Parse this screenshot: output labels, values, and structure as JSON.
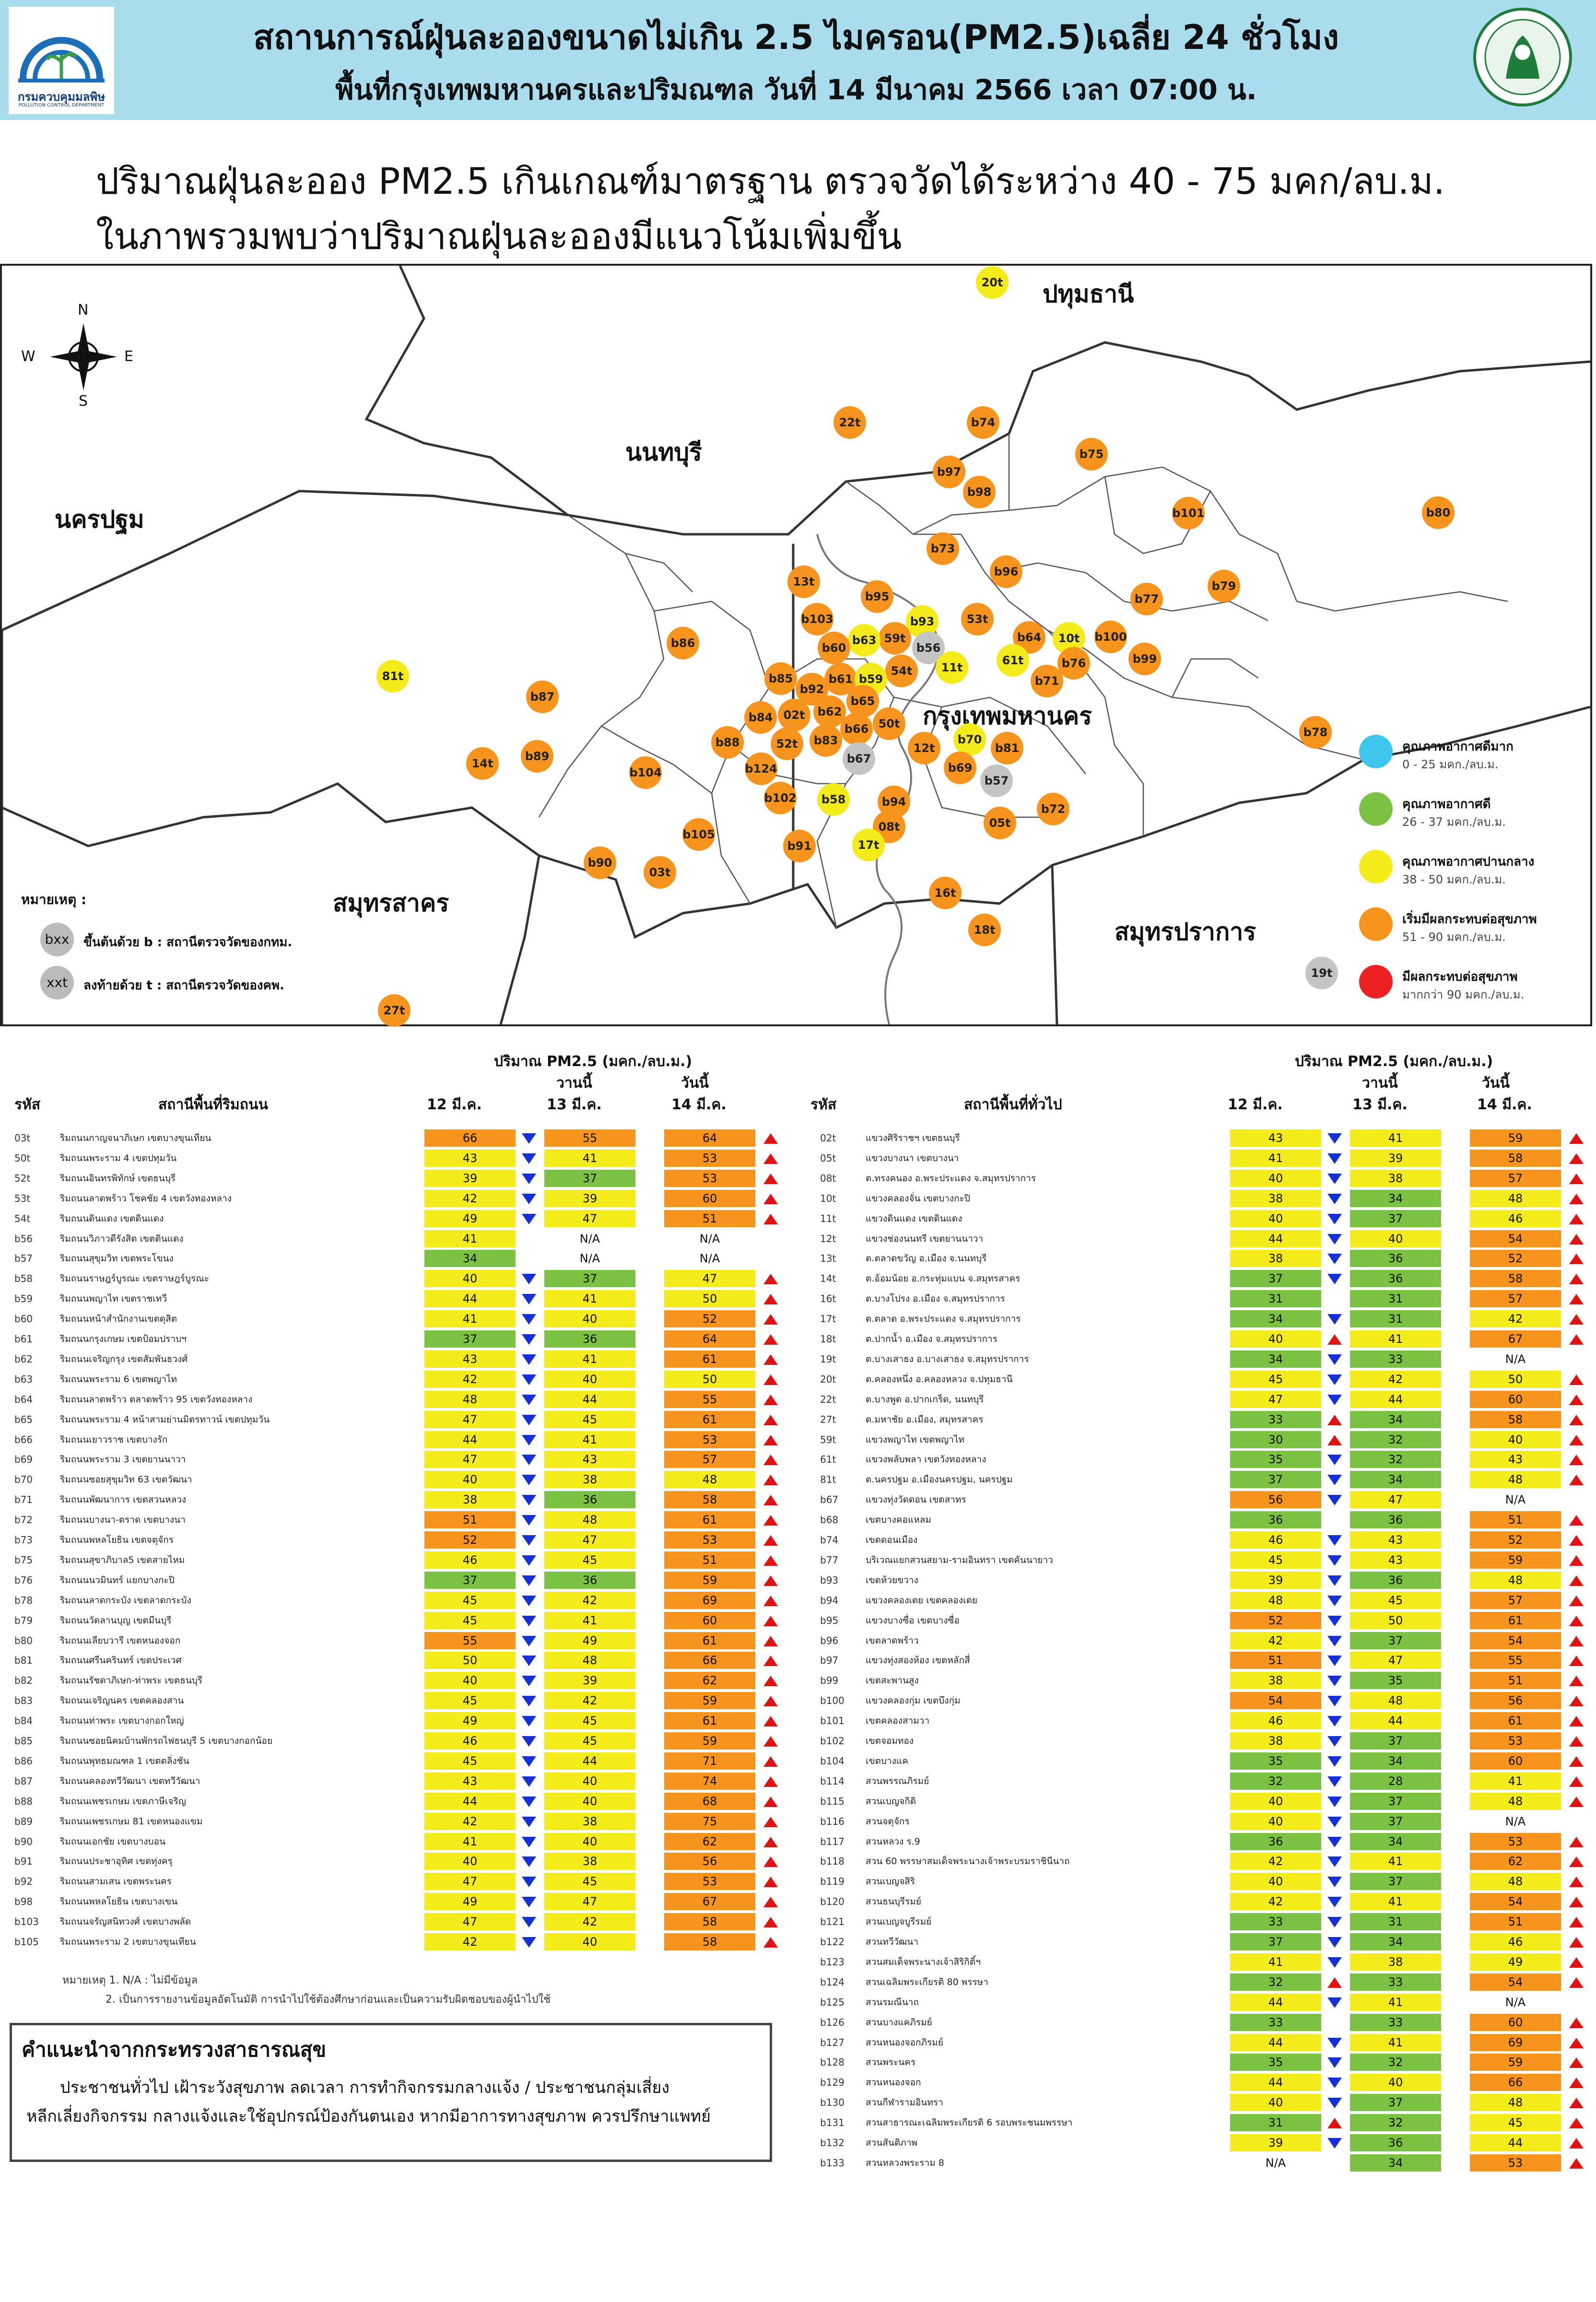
{
  "header": {
    "title_line1": "สถานการณ์ฝุ่นละอองขนาดไม่เกิน 2.5 ไมครอน(PM2.5)เฉลี่ย 24 ชั่วโมง",
    "title_line2": "พื้นที่กรุงเทพมหานครและปริมณฑล วันที่ 14 มีนาคม 2566 เวลา 07:00 น.",
    "pcd_name_th": "กรมควบคุมมลพิษ",
    "pcd_name_en": "POLLUTION CONTROL DEPARTMENT"
  },
  "headline": {
    "line1": "ปริมาณฝุ่นละออง PM2.5 เกินเกณฑ์มาตรฐาน ตรวจวัดได้ระหว่าง 40 - 75 มคก/ลบ.ม.",
    "line2": "ในภาพรวมพบว่าปริมาณฝุ่นละอองมีแนวโน้มเพิ่มขึ้น"
  },
  "map": {
    "compass": {
      "n": "N",
      "s": "S",
      "e": "E",
      "w": "W"
    },
    "provinces": [
      {
        "id": "pathum",
        "label": "ปทุมธานี"
      },
      {
        "id": "nonthaburi",
        "label": "นนทบุรี"
      },
      {
        "id": "nakhonpathom",
        "label": "นครปฐม"
      },
      {
        "id": "bangkok",
        "label": "กรุงเทพมหานคร"
      },
      {
        "id": "samutsakhon",
        "label": "สมุทรสาคร"
      },
      {
        "id": "samutprakan",
        "label": "สมุทรปราการ"
      }
    ],
    "stations": [
      {
        "id": "20t",
        "c": "y"
      },
      {
        "id": "22t",
        "c": "o"
      },
      {
        "id": "b74",
        "c": "o"
      },
      {
        "id": "b97",
        "c": "o"
      },
      {
        "id": "b98",
        "c": "o"
      },
      {
        "id": "b75",
        "c": "o"
      },
      {
        "id": "b101",
        "c": "o"
      },
      {
        "id": "b80",
        "c": "o"
      },
      {
        "id": "b73",
        "c": "o"
      },
      {
        "id": "b96",
        "c": "o"
      },
      {
        "id": "13t",
        "c": "o"
      },
      {
        "id": "b95",
        "c": "o"
      },
      {
        "id": "b79",
        "c": "o"
      },
      {
        "id": "b77",
        "c": "o"
      },
      {
        "id": "b103",
        "c": "o"
      },
      {
        "id": "b93",
        "c": "y"
      },
      {
        "id": "53t",
        "c": "o"
      },
      {
        "id": "59t",
        "c": "o"
      },
      {
        "id": "b63",
        "c": "y"
      },
      {
        "id": "b60",
        "c": "o"
      },
      {
        "id": "b56",
        "c": "g"
      },
      {
        "id": "b64",
        "c": "o"
      },
      {
        "id": "10t",
        "c": "y"
      },
      {
        "id": "b100",
        "c": "o"
      },
      {
        "id": "b86",
        "c": "o"
      },
      {
        "id": "61t",
        "c": "y"
      },
      {
        "id": "b76",
        "c": "o"
      },
      {
        "id": "11t",
        "c": "y"
      },
      {
        "id": "b99",
        "c": "o"
      },
      {
        "id": "54t",
        "c": "o"
      },
      {
        "id": "b71",
        "c": "o"
      },
      {
        "id": "81t",
        "c": "y"
      },
      {
        "id": "b85",
        "c": "o"
      },
      {
        "id": "b61",
        "c": "o"
      },
      {
        "id": "b59",
        "c": "y"
      },
      {
        "id": "b92",
        "c": "o"
      },
      {
        "id": "b87",
        "c": "o"
      },
      {
        "id": "b65",
        "c": "o"
      },
      {
        "id": "b62",
        "c": "o"
      },
      {
        "id": "02t",
        "c": "o"
      },
      {
        "id": "b84",
        "c": "o"
      },
      {
        "id": "b66",
        "c": "o"
      },
      {
        "id": "50t",
        "c": "o"
      },
      {
        "id": "b70",
        "c": "y"
      },
      {
        "id": "b78",
        "c": "o"
      },
      {
        "id": "b88",
        "c": "o"
      },
      {
        "id": "52t",
        "c": "o"
      },
      {
        "id": "b83",
        "c": "o"
      },
      {
        "id": "12t",
        "c": "o"
      },
      {
        "id": "b81",
        "c": "o"
      },
      {
        "id": "14t",
        "c": "o"
      },
      {
        "id": "b89",
        "c": "o"
      },
      {
        "id": "b67",
        "c": "g"
      },
      {
        "id": "b124",
        "c": "o"
      },
      {
        "id": "b69",
        "c": "o"
      },
      {
        "id": "b104",
        "c": "o"
      },
      {
        "id": "b57",
        "c": "g"
      },
      {
        "id": "b58",
        "c": "y"
      },
      {
        "id": "b102",
        "c": "o"
      },
      {
        "id": "b94",
        "c": "o"
      },
      {
        "id": "b72",
        "c": "o"
      },
      {
        "id": "08t",
        "c": "o"
      },
      {
        "id": "05t",
        "c": "o"
      },
      {
        "id": "b105",
        "c": "o"
      },
      {
        "id": "b91",
        "c": "o"
      },
      {
        "id": "17t",
        "c": "y"
      },
      {
        "id": "b90",
        "c": "o"
      },
      {
        "id": "03t",
        "c": "o"
      },
      {
        "id": "16t",
        "c": "o"
      },
      {
        "id": "18t",
        "c": "o"
      },
      {
        "id": "19t",
        "c": "g"
      },
      {
        "id": "27t",
        "c": "o"
      }
    ],
    "note": {
      "title": "หมายเหตุ :",
      "b_sym": "bxx",
      "b_text": "ขึ้นต้นด้วย b : สถานีตรวจวัดของกทม.",
      "t_sym": "xxt",
      "t_text": "ลงท้ายด้วย t : สถานีตรวจวัดของคพ."
    },
    "legend": [
      {
        "color": "#3ec6ee",
        "title": "คุณภาพอากาศดีมาก",
        "range": "0 - 25 มคก./ลบ.ม."
      },
      {
        "color": "#7cc242",
        "title": "คุณภาพอากาศดี",
        "range": "26 - 37 มคก./ลบ.ม."
      },
      {
        "color": "#f4ec1a",
        "title": "คุณภาพอากาศปานกลาง",
        "range": "38 - 50 มคก./ลบ.ม."
      },
      {
        "color": "#f7941d",
        "title": "เริ่มมีผลกระทบต่อสุขภาพ",
        "range": "51 - 90 มคก./ลบ.ม."
      },
      {
        "color": "#ed2024",
        "title": "มีผลกระทบต่อสุขภาพ",
        "range": "มากกว่า 90 มคก./ลบ.ม."
      }
    ]
  },
  "colors": {
    "g": "#7cc242",
    "y": "#f4ec1a",
    "o": "#f7941d",
    "r": "#ed2024",
    "na": "#ffffff",
    "up": "#e11212",
    "down": "#1530d8"
  },
  "tables": {
    "h_pm": "ปริมาณ PM2.5 (มคก./ลบ.ม.)",
    "h_yesterday": "วานนี้",
    "h_today": "วันนี้",
    "h_code": "รหัส",
    "h_roadside": "สถานีพื้นที่ริมถนน",
    "h_general": "สถานีพื้นที่ทั่วไป",
    "h_d12": "12 มี.ค.",
    "h_d13": "13 มี.ค.",
    "h_d14": "14 มี.ค.",
    "notes_1": "หมายเหตุ 1. N/A : ไม่มีข้อมูล",
    "notes_2": "2. เป็นการรายงานข้อมูลอัตโนมัติ การนำไปใช้ต้องศึกษาก่อนและเป็นความรับผิดชอบของผู้นำไปใช้",
    "roadside": [
      [
        "03t",
        "ริมถนนกาญจนาภิเษก เขตบางขุนเทียน",
        "66",
        "55",
        "64",
        "d",
        "u"
      ],
      [
        "50t",
        "ริมถนนพระราม 4 เขตปทุมวัน",
        "43",
        "41",
        "53",
        "d",
        "u"
      ],
      [
        "52t",
        "ริมถนนอินทรพิทักษ์ เขตธนบุรี",
        "39",
        "37",
        "53",
        "d",
        "u"
      ],
      [
        "53t",
        "ริมถนนลาดพร้าว โชคชัย 4 เขตวังทองหลาง",
        "42",
        "39",
        "60",
        "d",
        "u"
      ],
      [
        "54t",
        "ริมถนนดินแดง เขตดินแดง",
        "49",
        "47",
        "51",
        "d",
        "u"
      ],
      [
        "b56",
        "ริมถนนวิภาวดีรังสิต เขตดินแดง",
        "41",
        "N/A",
        "N/A",
        "",
        ""
      ],
      [
        "b57",
        "ริมถนนสุขุมวิท เขตพระโขนง",
        "34",
        "N/A",
        "N/A",
        "",
        ""
      ],
      [
        "b58",
        "ริมถนนราษฎร์บูรณะ เขตราษฎร์บูรณะ",
        "40",
        "37",
        "47",
        "d",
        "u"
      ],
      [
        "b59",
        "ริมถนนพญาไท เขตราชเทวี",
        "44",
        "41",
        "50",
        "d",
        "u"
      ],
      [
        "b60",
        "ริมถนนหน้าสำนักงานเขตดุสิต",
        "41",
        "40",
        "52",
        "d",
        "u"
      ],
      [
        "b61",
        "ริมถนนกรุงเกษม เขตป้อมปราบฯ",
        "37",
        "36",
        "64",
        "d",
        "u"
      ],
      [
        "b62",
        "ริมถนนเจริญกรุง เขตสัมพันธวงศ์",
        "43",
        "41",
        "61",
        "d",
        "u"
      ],
      [
        "b63",
        "ริมถนนพระราม 6 เขตพญาไท",
        "42",
        "40",
        "50",
        "d",
        "u"
      ],
      [
        "b64",
        "ริมถนนลาดพร้าว ตลาดพร้าว 95 เขตวังทองหลาง",
        "48",
        "44",
        "55",
        "d",
        "u"
      ],
      [
        "b65",
        "ริมถนนพระราม 4 หน้าสามย่านมิตรทาวน์ เขตปทุมวัน",
        "47",
        "45",
        "61",
        "d",
        "u"
      ],
      [
        "b66",
        "ริมถนนเยาวราช เขตบางรัก",
        "44",
        "41",
        "53",
        "d",
        "u"
      ],
      [
        "b69",
        "ริมถนนพระราม 3 เขตยานนาวา",
        "47",
        "43",
        "57",
        "d",
        "u"
      ],
      [
        "b70",
        "ริมถนนซอยสุขุมวิท 63 เขตวัฒนา",
        "40",
        "38",
        "48",
        "d",
        "u"
      ],
      [
        "b71",
        "ริมถนนพัฒนาการ เขตสวนหลวง",
        "38",
        "36",
        "58",
        "d",
        "u"
      ],
      [
        "b72",
        "ริมถนนบางนา-ตราด เขตบางนา",
        "51",
        "48",
        "61",
        "d",
        "u"
      ],
      [
        "b73",
        "ริมถนนพหลโยธิน เขตจตุจักร",
        "52",
        "47",
        "53",
        "d",
        "u"
      ],
      [
        "b75",
        "ริมถนนสุขาภิบาล5 เขตสายไหม",
        "46",
        "45",
        "51",
        "d",
        "u"
      ],
      [
        "b76",
        "ริมถนนนวมินทร์ แยกบางกะปิ",
        "37",
        "36",
        "59",
        "d",
        "u"
      ],
      [
        "b78",
        "ริมถนนลาดกระบัง เขตลาดกระบัง",
        "45",
        "42",
        "69",
        "d",
        "u"
      ],
      [
        "b79",
        "ริมถนนวัดลานบุญ เขตมีนบุรี",
        "45",
        "41",
        "60",
        "d",
        "u"
      ],
      [
        "b80",
        "ริมถนนเลียบวารี เขตหนองจอก",
        "55",
        "49",
        "61",
        "d",
        "u"
      ],
      [
        "b81",
        "ริมถนนศรีนครินทร์ เขตประเวศ",
        "50",
        "48",
        "66",
        "d",
        "u"
      ],
      [
        "b82",
        "ริมถนนรัชดาภิเษก-ท่าพระ เขตธนบุรี",
        "40",
        "39",
        "62",
        "d",
        "u"
      ],
      [
        "b83",
        "ริมถนนเจริญนคร เขตคลองสาน",
        "45",
        "42",
        "59",
        "d",
        "u"
      ],
      [
        "b84",
        "ริมถนนท่าพระ เขตบางกอกใหญ่",
        "49",
        "45",
        "61",
        "d",
        "u"
      ],
      [
        "b85",
        "ริมถนนซอยนิคมบ้านพักรถไฟธนบุรี 5 เขตบางกอกน้อย",
        "46",
        "45",
        "59",
        "d",
        "u"
      ],
      [
        "b86",
        "ริมถนนพุทธมณฑล 1 เขตตลิ่งชัน",
        "45",
        "44",
        "71",
        "d",
        "u"
      ],
      [
        "b87",
        "ริมถนนคลองทวีวัฒนา เขตทวีวัฒนา",
        "43",
        "40",
        "74",
        "d",
        "u"
      ],
      [
        "b88",
        "ริมถนนเพชรเกษม เขตภาษีเจริญ",
        "44",
        "40",
        "68",
        "d",
        "u"
      ],
      [
        "b89",
        "ริมถนนเพชรเกษม 81 เขตหนองแขม",
        "42",
        "38",
        "75",
        "d",
        "u"
      ],
      [
        "b90",
        "ริมถนนเอกชัย เขตบางบอน",
        "41",
        "40",
        "62",
        "d",
        "u"
      ],
      [
        "b91",
        "ริมถนนประชาอุทิศ เขตทุ่งครุ",
        "40",
        "38",
        "56",
        "d",
        "u"
      ],
      [
        "b92",
        "ริมถนนสามเสน เขตพระนคร",
        "47",
        "45",
        "53",
        "d",
        "u"
      ],
      [
        "b98",
        "ริมถนนพหลโยธิน เขตบางเขน",
        "49",
        "47",
        "67",
        "d",
        "u"
      ],
      [
        "b103",
        "ริมถนนจรัญสนิทวงศ์ เขตบางพลัด",
        "47",
        "42",
        "58",
        "d",
        "u"
      ],
      [
        "b105",
        "ริมถนนพระราม 2 เขตบางขุนเทียน",
        "42",
        "40",
        "58",
        "d",
        "u"
      ]
    ],
    "general": [
      [
        "02t",
        "แขวงศิริราชฯ เขตธนบุรี",
        "43",
        "41",
        "59",
        "d",
        "u"
      ],
      [
        "05t",
        "แขวงบางนา เขตบางนา",
        "41",
        "39",
        "58",
        "d",
        "u"
      ],
      [
        "08t",
        "ต.ทรงคนอง อ.พระประแดง จ.สมุทรปราการ",
        "40",
        "38",
        "57",
        "d",
        "u"
      ],
      [
        "10t",
        "แขวงคลองจั่น เขตบางกะปิ",
        "38",
        "34",
        "48",
        "d",
        "u"
      ],
      [
        "11t",
        "แขวงดินแดง เขตดินแดง",
        "40",
        "37",
        "46",
        "d",
        "u"
      ],
      [
        "12t",
        "แขวงช่องนนทรี เขตยานนาวา",
        "44",
        "40",
        "54",
        "d",
        "u"
      ],
      [
        "13t",
        "ต.ตลาดขวัญ อ.เมือง จ.นนทบุรี",
        "38",
        "36",
        "52",
        "d",
        "u"
      ],
      [
        "14t",
        "ต.อ้อมน้อย อ.กระทุ่มแบน จ.สมุทรสาคร",
        "37",
        "36",
        "58",
        "d",
        "u"
      ],
      [
        "16t",
        "ต.บางโปรง อ.เมือง จ.สมุทรปราการ",
        "31",
        "31",
        "57",
        "",
        "u"
      ],
      [
        "17t",
        "ต.ตลาด อ.พระประแดง จ.สมุทรปราการ",
        "34",
        "31",
        "42",
        "d",
        "u"
      ],
      [
        "18t",
        "ต.ปากน้ำ อ.เมือง จ.สมุทรปราการ",
        "40",
        "41",
        "67",
        "u",
        "u"
      ],
      [
        "19t",
        "ต.บางเสาธง อ.บางเสาธง จ.สมุทรปราการ",
        "34",
        "33",
        "N/A",
        "d",
        ""
      ],
      [
        "20t",
        "ต.คลองหนึ่ง อ.คลองหลวง จ.ปทุมธานี",
        "45",
        "42",
        "50",
        "d",
        "u"
      ],
      [
        "22t",
        "ต.บางพูด อ.ปากเกร็ด, นนทบุรี",
        "47",
        "44",
        "60",
        "d",
        "u"
      ],
      [
        "27t",
        "ต.มหาชัย อ.เมือง, สมุทรสาคร",
        "33",
        "34",
        "58",
        "u",
        "u"
      ],
      [
        "59t",
        "แขวงพญาไท เขตพญาไท",
        "30",
        "32",
        "40",
        "u",
        "u"
      ],
      [
        "61t",
        "แขวงพลับพลา เขตวังทองหลาง",
        "35",
        "32",
        "43",
        "d",
        "u"
      ],
      [
        "81t",
        "ต.นครปฐม อ.เมืองนครปฐม, นครปฐม",
        "37",
        "34",
        "48",
        "d",
        "u"
      ],
      [
        "b67",
        "แขวงทุ่งวัดดอน เขตสาทร",
        "56",
        "47",
        "N/A",
        "d",
        ""
      ],
      [
        "b68",
        "เขตบางคอแหลม",
        "36",
        "36",
        "51",
        "",
        "u"
      ],
      [
        "b74",
        "เขตดอนเมือง",
        "46",
        "43",
        "52",
        "d",
        "u"
      ],
      [
        "b77",
        "บริเวณแยกสวนสยาม-รามอินทรา เขตคันนายาว",
        "45",
        "43",
        "59",
        "d",
        "u"
      ],
      [
        "b93",
        "เขตห้วยขวาง",
        "39",
        "36",
        "48",
        "d",
        "u"
      ],
      [
        "b94",
        "แขวงคลองเตย เขตคลองเตย",
        "48",
        "45",
        "57",
        "d",
        "u"
      ],
      [
        "b95",
        "แขวงบางซื่อ เขตบางซื่อ",
        "52",
        "50",
        "61",
        "d",
        "u"
      ],
      [
        "b96",
        "เขตลาดพร้าว",
        "42",
        "37",
        "54",
        "d",
        "u"
      ],
      [
        "b97",
        "แขวงทุ่งสองห้อง เขตหลักสี่",
        "51",
        "47",
        "55",
        "d",
        "u"
      ],
      [
        "b99",
        "เขตสะพานสูง",
        "38",
        "35",
        "51",
        "d",
        "u"
      ],
      [
        "b100",
        "แขวงคลองกุ่ม เขตบึงกุ่ม",
        "54",
        "48",
        "56",
        "d",
        "u"
      ],
      [
        "b101",
        "เขตคลองสามวา",
        "46",
        "44",
        "61",
        "d",
        "u"
      ],
      [
        "b102",
        "เขตจอมทอง",
        "38",
        "37",
        "53",
        "d",
        "u"
      ],
      [
        "b104",
        "เขตบางแค",
        "35",
        "34",
        "60",
        "d",
        "u"
      ],
      [
        "b114",
        "สวนพรรณภิรมย์",
        "32",
        "28",
        "41",
        "d",
        "u"
      ],
      [
        "b115",
        "สวนเบญจกิติ",
        "40",
        "37",
        "48",
        "d",
        "u"
      ],
      [
        "b116",
        "สวนจตุจักร",
        "40",
        "37",
        "N/A",
        "d",
        ""
      ],
      [
        "b117",
        "สวนหลวง ร.9",
        "36",
        "34",
        "53",
        "d",
        "u"
      ],
      [
        "b118",
        "สวน 60 พรรษาสมเด็จพระนางเจ้าพระบรมราชินีนาถ",
        "42",
        "41",
        "62",
        "d",
        "u"
      ],
      [
        "b119",
        "สวนเบญจสิริ",
        "40",
        "37",
        "48",
        "d",
        "u"
      ],
      [
        "b120",
        "สวนธนบุรีรมย์",
        "42",
        "41",
        "54",
        "d",
        "u"
      ],
      [
        "b121",
        "สวนเบญจบูรีรมย์",
        "33",
        "31",
        "51",
        "d",
        "u"
      ],
      [
        "b122",
        "สวนทวีวัฒนา",
        "37",
        "34",
        "46",
        "d",
        "u"
      ],
      [
        "b123",
        "สวนสมเด็จพระนางเจ้าสิริกิติ์ฯ",
        "41",
        "38",
        "49",
        "d",
        "u"
      ],
      [
        "b124",
        "สวนเฉลิมพระเกียรติ 80 พรรษา",
        "32",
        "33",
        "54",
        "u",
        "u"
      ],
      [
        "b125",
        "สวนรมณีนาถ",
        "44",
        "41",
        "N/A",
        "d",
        ""
      ],
      [
        "b126",
        "สวนบางแคภิรมย์",
        "33",
        "33",
        "60",
        "",
        "u"
      ],
      [
        "b127",
        "สวนหนองจอกภิรมย์",
        "44",
        "41",
        "69",
        "d",
        "u"
      ],
      [
        "b128",
        "สวนพระนคร",
        "35",
        "32",
        "59",
        "d",
        "u"
      ],
      [
        "b129",
        "สวนหนองจอก",
        "44",
        "40",
        "66",
        "d",
        "u"
      ],
      [
        "b130",
        "สวนกีฬารามอินทรา",
        "40",
        "37",
        "48",
        "d",
        "u"
      ],
      [
        "b131",
        "สวนสาธารณะเฉลิมพระเกียรติ 6 รอบพระชนมพรรษา",
        "31",
        "32",
        "45",
        "u",
        "u"
      ],
      [
        "b132",
        "สวนสันติภาพ",
        "39",
        "36",
        "44",
        "d",
        "u"
      ],
      [
        "b133",
        "สวนหลวงพระราม 8",
        "N/A",
        "34",
        "53",
        "",
        "u"
      ]
    ]
  },
  "advice": {
    "title": "คำแนะนำจากกระทรวงสาธารณสุข",
    "line1": "ประชาชนทั่วไป เฝ้าระวังสุขภาพ ลดเวลา การทำกิจกรรมกลางแจ้ง / ประชาชนกลุ่มเสี่ยง",
    "line2": "หลีกเลี่ยงกิจกรรม กลางแจ้งและใช้อุปกรณ์ป้องกันตนเอง หากมีอาการทางสุขภาพ ควรปรึกษาแพทย์"
  }
}
